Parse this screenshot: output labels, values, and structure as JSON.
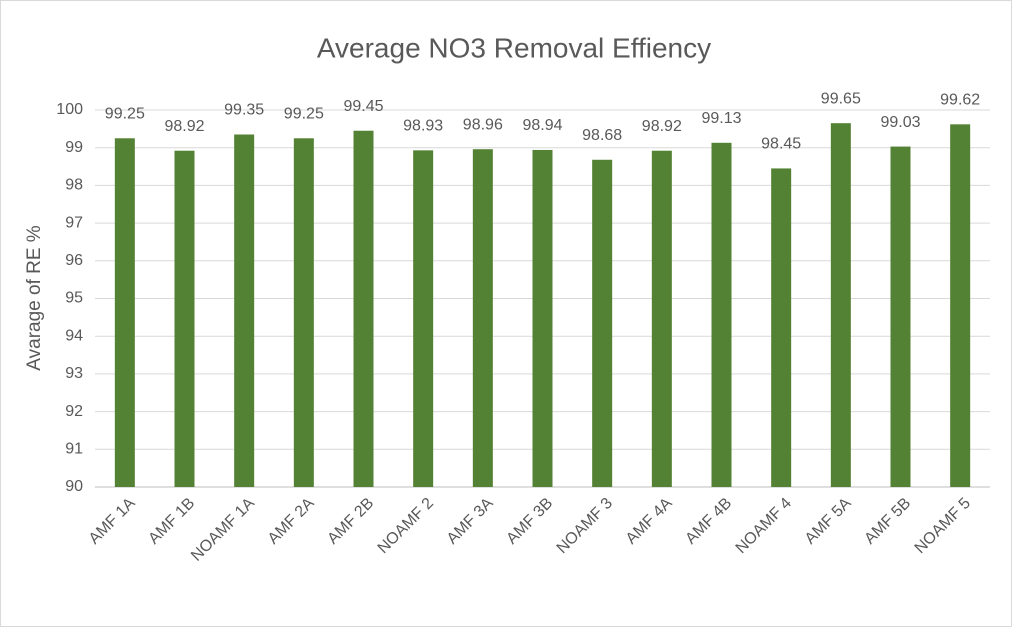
{
  "chart_data": {
    "type": "bar",
    "title": "Average NO3 Removal Effiency",
    "y_label": "Avarage of RE %",
    "categories": [
      "AMF 1A",
      "AMF 1B",
      "NOAMF 1A",
      "AMF 2A",
      "AMF 2B",
      "NOAMF 2",
      "AMF 3A",
      "AMF 3B",
      "NOAMF 3",
      "AMF 4A",
      "AMF 4B",
      "NOAMF 4",
      "AMF 5A",
      "AMF 5B",
      "NOAMF 5"
    ],
    "values": [
      99.25,
      98.92,
      99.35,
      99.25,
      99.45,
      98.93,
      98.96,
      98.94,
      98.68,
      98.92,
      99.13,
      98.45,
      99.65,
      99.03,
      99.62
    ],
    "color": "#548235",
    "ylim": [
      90,
      100
    ],
    "yticks": [
      90,
      91,
      92,
      93,
      94,
      95,
      96,
      97,
      98,
      99,
      100
    ],
    "grid": true
  }
}
